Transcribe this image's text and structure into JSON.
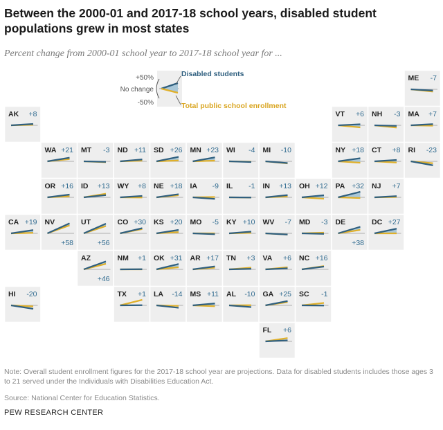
{
  "title": "Between the 2000-01 and 2017-18 school years, disabled student populations grew in most states",
  "subtitle": "Percent change from 2000-01 school year to 2017-18 school year for ...",
  "note": "Note: Overall student enrollment figures for the 2017-18 school year are projections. Data for disabled students includes those ages 3 to 21 served under the Individuals with Disabilities Education Act.",
  "source": "Source: National Center for Education Statistics.",
  "brand": "PEW RESEARCH CENTER",
  "colors": {
    "disabled": "#2f5f7f",
    "enrollment": "#e0b02a",
    "fill": "#a9c7d8",
    "tile": "#eeeeee",
    "value_text": "#2f6a8f"
  },
  "legend": {
    "disabled_label": "Disabled students",
    "enrollment_label": "Total public school enrollment",
    "plus50": "+50%",
    "nochange": "No change",
    "minus50": "-50%"
  },
  "chart_data": {
    "type": "tile-map",
    "description_units": "percent change",
    "series": [
      {
        "name": "Disabled students"
      },
      {
        "name": "Total public school enrollment"
      }
    ],
    "states": [
      {
        "abbr": "ME",
        "disabled": -7,
        "label": "-7",
        "enrollment": -13,
        "col": 11,
        "row": 0
      },
      {
        "abbr": "AK",
        "disabled": 8,
        "label": "+8",
        "enrollment": 3,
        "col": 0,
        "row": 1
      },
      {
        "abbr": "VT",
        "disabled": 6,
        "label": "+6",
        "enrollment": -12,
        "col": 9,
        "row": 1
      },
      {
        "abbr": "NH",
        "disabled": -3,
        "label": "-3",
        "enrollment": -13,
        "col": 10,
        "row": 1
      },
      {
        "abbr": "MA",
        "disabled": 7,
        "label": "+7",
        "enrollment": -2,
        "col": 11,
        "row": 1
      },
      {
        "abbr": "WA",
        "disabled": 21,
        "label": "+21",
        "enrollment": 13,
        "col": 1,
        "row": 2
      },
      {
        "abbr": "MT",
        "disabled": -3,
        "label": "-3",
        "enrollment": -5,
        "col": 2,
        "row": 2
      },
      {
        "abbr": "ND",
        "disabled": 11,
        "label": "+11",
        "enrollment": 4,
        "col": 3,
        "row": 2
      },
      {
        "abbr": "SD",
        "disabled": 26,
        "label": "+26",
        "enrollment": 5,
        "col": 4,
        "row": 2
      },
      {
        "abbr": "MN",
        "disabled": 23,
        "label": "+23",
        "enrollment": 4,
        "col": 5,
        "row": 2
      },
      {
        "abbr": "WI",
        "disabled": -4,
        "label": "-4",
        "enrollment": -2,
        "col": 6,
        "row": 2
      },
      {
        "abbr": "MI",
        "disabled": -10,
        "label": "-10",
        "enrollment": -12,
        "col": 7,
        "row": 2
      },
      {
        "abbr": "NY",
        "disabled": 18,
        "label": "+18",
        "enrollment": -8,
        "col": 9,
        "row": 2
      },
      {
        "abbr": "CT",
        "disabled": 8,
        "label": "+8",
        "enrollment": -7,
        "col": 10,
        "row": 2
      },
      {
        "abbr": "RI",
        "disabled": -23,
        "label": "-23",
        "enrollment": -11,
        "col": 11,
        "row": 2
      },
      {
        "abbr": "OR",
        "disabled": 16,
        "label": "+16",
        "enrollment": 6,
        "col": 1,
        "row": 3
      },
      {
        "abbr": "ID",
        "disabled": 13,
        "label": "+13",
        "enrollment": 21,
        "col": 2,
        "row": 3
      },
      {
        "abbr": "WY",
        "disabled": 8,
        "label": "+8",
        "enrollment": -1,
        "col": 3,
        "row": 3
      },
      {
        "abbr": "NE",
        "disabled": 18,
        "label": "+18",
        "enrollment": 12,
        "col": 4,
        "row": 3
      },
      {
        "abbr": "IA",
        "disabled": -9,
        "label": "-9",
        "enrollment": 2,
        "col": 5,
        "row": 3
      },
      {
        "abbr": "IL",
        "disabled": -1,
        "label": "-1",
        "enrollment": -1,
        "col": 6,
        "row": 3
      },
      {
        "abbr": "IN",
        "disabled": 13,
        "label": "+13",
        "enrollment": 5,
        "col": 7,
        "row": 3
      },
      {
        "abbr": "OH",
        "disabled": 12,
        "label": "+12",
        "enrollment": -8,
        "col": 8,
        "row": 3
      },
      {
        "abbr": "PA",
        "disabled": 32,
        "label": "+32",
        "enrollment": -4,
        "col": 9,
        "row": 3
      },
      {
        "abbr": "NJ",
        "disabled": 7,
        "label": "+7",
        "enrollment": 2,
        "col": 10,
        "row": 3
      },
      {
        "abbr": "CA",
        "disabled": 19,
        "label": "+19",
        "enrollment": 3,
        "col": 0,
        "row": 4
      },
      {
        "abbr": "NV",
        "disabled": 58,
        "label": "+58",
        "enrollment": 46,
        "col": 1,
        "row": 4
      },
      {
        "abbr": "UT",
        "disabled": 56,
        "label": "+56",
        "enrollment": 42,
        "col": 2,
        "row": 4
      },
      {
        "abbr": "CO",
        "disabled": 30,
        "label": "+30",
        "enrollment": 25,
        "col": 3,
        "row": 4
      },
      {
        "abbr": "KS",
        "disabled": 20,
        "label": "+20",
        "enrollment": 7,
        "col": 4,
        "row": 4
      },
      {
        "abbr": "MO",
        "disabled": -5,
        "label": "-5",
        "enrollment": 0,
        "col": 5,
        "row": 4
      },
      {
        "abbr": "KY",
        "disabled": 10,
        "label": "+10",
        "enrollment": 3,
        "col": 6,
        "row": 4
      },
      {
        "abbr": "WV",
        "disabled": -7,
        "label": "-7",
        "enrollment": -7,
        "col": 7,
        "row": 4
      },
      {
        "abbr": "MD",
        "disabled": -3,
        "label": "-3",
        "enrollment": 4,
        "col": 8,
        "row": 4
      },
      {
        "abbr": "DE",
        "disabled": 38,
        "label": "+38",
        "enrollment": 20,
        "col": 9,
        "row": 4
      },
      {
        "abbr": "DC",
        "disabled": 27,
        "label": "+27",
        "enrollment": 0,
        "col": 10,
        "row": 4
      },
      {
        "abbr": "AZ",
        "disabled": 46,
        "label": "+46",
        "enrollment": 32,
        "col": 2,
        "row": 5
      },
      {
        "abbr": "NM",
        "disabled": 1,
        "label": "+1",
        "enrollment": 0,
        "col": 3,
        "row": 5
      },
      {
        "abbr": "OK",
        "disabled": 31,
        "label": "+31",
        "enrollment": 12,
        "col": 4,
        "row": 5
      },
      {
        "abbr": "AR",
        "disabled": 17,
        "label": "+17",
        "enrollment": 10,
        "col": 5,
        "row": 5
      },
      {
        "abbr": "TN",
        "disabled": 3,
        "label": "+3",
        "enrollment": 10,
        "col": 6,
        "row": 5
      },
      {
        "abbr": "VA",
        "disabled": 6,
        "label": "+6",
        "enrollment": 12,
        "col": 7,
        "row": 5
      },
      {
        "abbr": "NC",
        "disabled": 16,
        "label": "+16",
        "enrollment": 19,
        "col": 8,
        "row": 5
      },
      {
        "abbr": "HI",
        "disabled": -20,
        "label": "-20",
        "enrollment": -6,
        "col": 0,
        "row": 6
      },
      {
        "abbr": "TX",
        "disabled": 1,
        "label": "+1",
        "enrollment": 32,
        "col": 3,
        "row": 6
      },
      {
        "abbr": "LA",
        "disabled": -14,
        "label": "-14",
        "enrollment": -3,
        "col": 4,
        "row": 6
      },
      {
        "abbr": "MS",
        "disabled": 11,
        "label": "+11",
        "enrollment": -5,
        "col": 5,
        "row": 6
      },
      {
        "abbr": "AL",
        "disabled": -10,
        "label": "-10",
        "enrollment": 1,
        "col": 6,
        "row": 6
      },
      {
        "abbr": "GA",
        "disabled": 25,
        "label": "+25",
        "enrollment": 19,
        "col": 7,
        "row": 6
      },
      {
        "abbr": "SC",
        "disabled": -1,
        "label": "-1",
        "enrollment": 14,
        "col": 8,
        "row": 6
      },
      {
        "abbr": "FL",
        "disabled": 6,
        "label": "+6",
        "enrollment": 19,
        "col": 7,
        "row": 7
      }
    ]
  }
}
